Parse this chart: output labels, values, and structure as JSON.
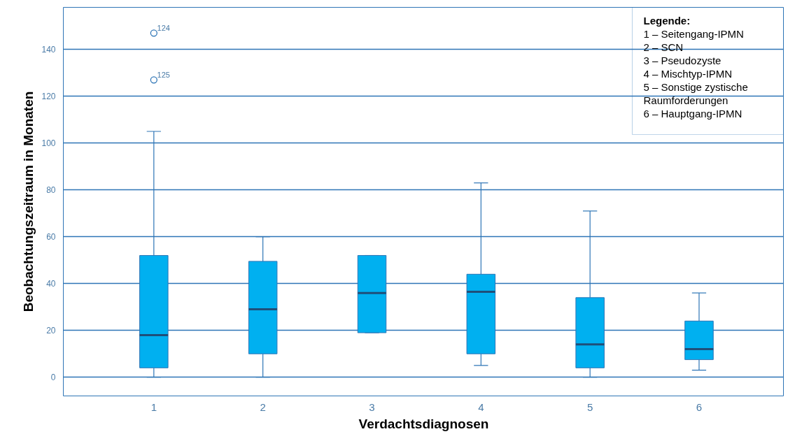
{
  "chart_data": {
    "type": "box",
    "xlabel": "Verdachtsdiagnosen",
    "ylabel": "Beobachtungszeitraum in Monaten",
    "categories": [
      "1",
      "2",
      "3",
      "4",
      "5",
      "6"
    ],
    "boxes": [
      {
        "low": 0,
        "q1": 4,
        "median": 18,
        "q3": 52,
        "high": 105,
        "outliers": [
          147,
          127
        ]
      },
      {
        "low": 0,
        "q1": 10,
        "median": 29,
        "q3": 49.5,
        "high": 60
      },
      {
        "low": 19,
        "q1": 19,
        "median": 36,
        "q3": 52,
        "high": 52
      },
      {
        "low": 5,
        "q1": 10,
        "median": 36.5,
        "q3": 44,
        "high": 83
      },
      {
        "low": 0,
        "q1": 4,
        "median": 14,
        "q3": 34,
        "high": 71
      },
      {
        "low": 3,
        "q1": 7.5,
        "median": 12,
        "q3": 24,
        "high": 36
      }
    ],
    "color": "#00b0f0",
    "ylim": [
      -8,
      158
    ],
    "yticks": [
      0,
      20,
      40,
      60,
      80,
      100,
      120,
      140
    ],
    "grid": "y",
    "annotations": [
      "124",
      "125",
      "Legende:",
      "1 – Seitengang-IPMN",
      "2 – SCN",
      "3 – Pseudozyste",
      "4 – Mischtyp-IPMN",
      "5 – Sonstige zystische Raumforderungen",
      "6 – Hauptgang-IPMN"
    ]
  }
}
